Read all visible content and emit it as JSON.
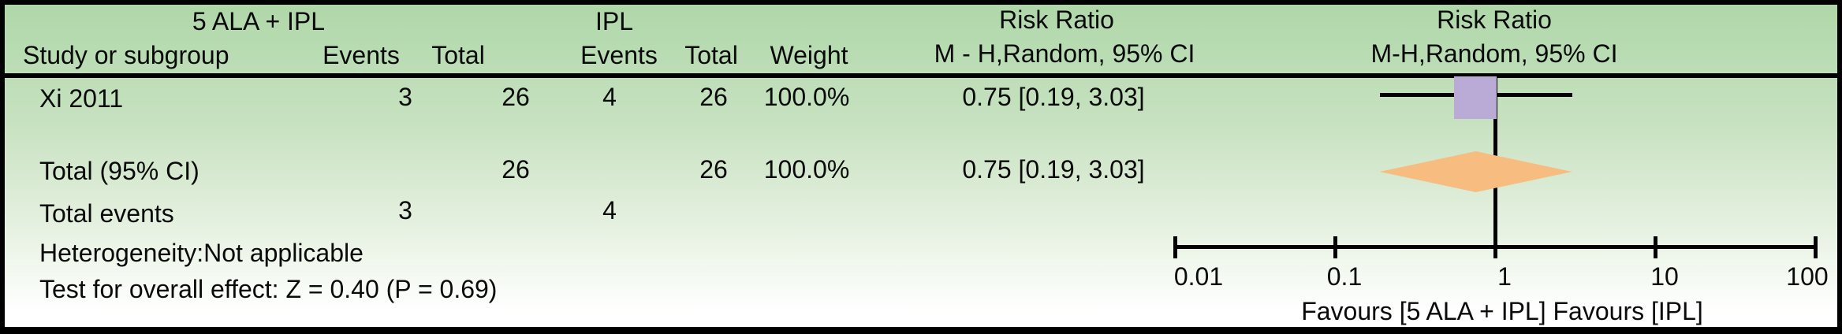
{
  "colors": {
    "study_marker": "#b9abd6",
    "total_diamond": "#f7bc7f",
    "line": "#000000",
    "background_top": "#aed6a8",
    "background_bottom": "#ffffff"
  },
  "header": {
    "col_study": "Study or subgroup",
    "group_treatment": "5 ALA + IPL",
    "group_control": "IPL",
    "col_events": "Events",
    "col_total": "Total",
    "col_weight": "Weight",
    "rr_left_title": "Risk Ratio",
    "rr_left_sub": "M - H,Random, 95% CI",
    "rr_right_title": "Risk Ratio",
    "rr_right_sub": "M-H,Random, 95% CI"
  },
  "rows": {
    "study": {
      "name": "Xi 2011",
      "events_treatment": "3",
      "total_treatment": "26",
      "events_control": "4",
      "total_control": "26",
      "weight": "100.0%",
      "rr_ci": "0.75 [0.19, 3.03]"
    },
    "total": {
      "name": "Total (95% CI)",
      "total_treatment": "26",
      "total_control": "26",
      "weight": "100.0%",
      "rr_ci": "0.75 [0.19, 3.03]"
    },
    "total_events": {
      "name": "Total events",
      "events_treatment": "3",
      "events_control": "4"
    },
    "heterogeneity": "Heterogeneity:Not applicable",
    "overall_effect": "Test for overall effect: Z = 0.40 (P = 0.69)"
  },
  "axis": {
    "favours_label": "Favours [5 ALA + IPL] Favours [IPL]"
  },
  "chart_data": {
    "type": "forest",
    "scale": "log10",
    "xlim": [
      0.01,
      100
    ],
    "ticks": [
      0.01,
      0.1,
      1,
      10,
      100
    ],
    "tick_labels": [
      "0.01",
      "0.1",
      "1",
      "10",
      "100"
    ],
    "reference_line": 1,
    "effect_measure": "Risk Ratio (M-H, Random, 95% CI)",
    "studies": [
      {
        "name": "Xi 2011",
        "events_treatment": 3,
        "total_treatment": 26,
        "events_control": 4,
        "total_control": 26,
        "weight_pct": 100.0,
        "rr": 0.75,
        "ci_low": 0.19,
        "ci_high": 3.03
      }
    ],
    "total": {
      "name": "Total (95% CI)",
      "total_treatment": 26,
      "total_control": 26,
      "weight_pct": 100.0,
      "rr": 0.75,
      "ci_low": 0.19,
      "ci_high": 3.03,
      "total_events_treatment": 3,
      "total_events_control": 4,
      "heterogeneity": "Not applicable",
      "overall_effect_z": 0.4,
      "overall_effect_p": 0.69
    },
    "favours_left": "Favours [5 ALA + IPL]",
    "favours_right": "Favours [IPL]"
  }
}
